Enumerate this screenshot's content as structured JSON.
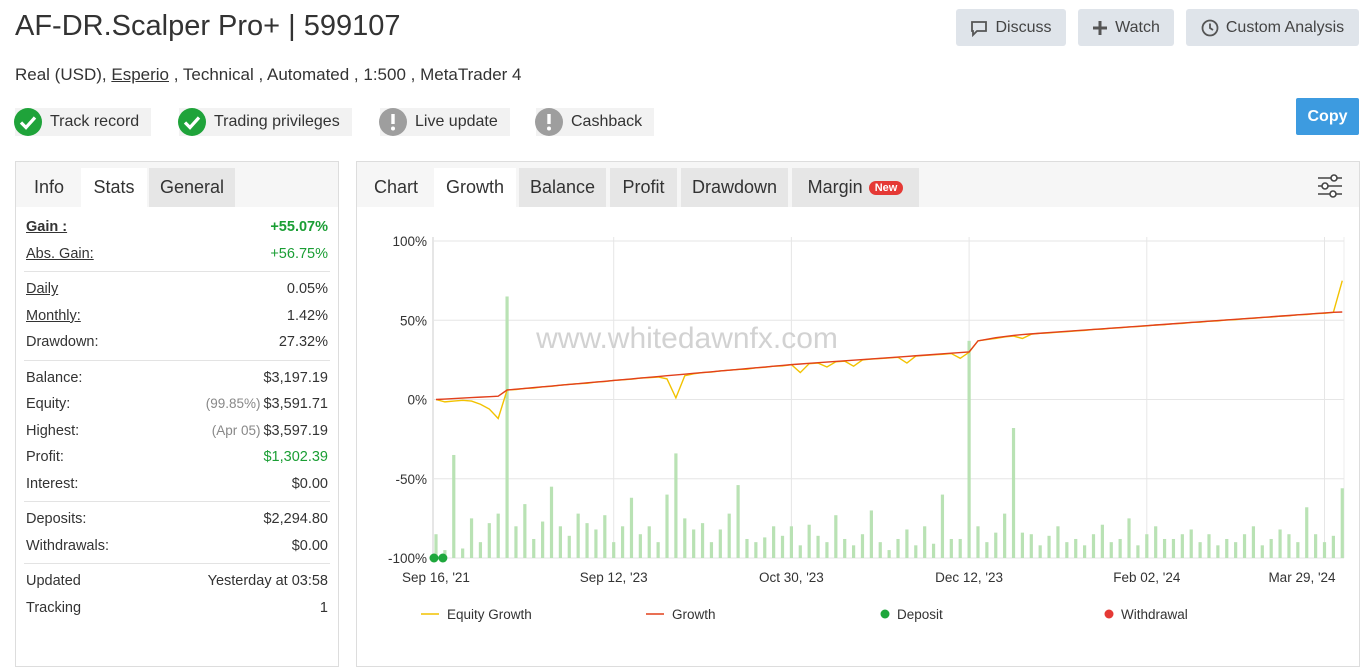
{
  "header": {
    "title": "AF-DR.Scalper Pro+ | 599107",
    "account": "Real (USD),",
    "broker": "Esperio",
    "details": ", Technical , Automated , 1:500 , MetaTrader 4",
    "buttons": [
      "Discuss",
      "Watch",
      "Custom Analysis"
    ],
    "copy": "Copy"
  },
  "badges": [
    {
      "label": "Track record",
      "ok": true
    },
    {
      "label": "Trading privileges",
      "ok": true
    },
    {
      "label": "Live update",
      "ok": false
    },
    {
      "label": "Cashback",
      "ok": false
    }
  ],
  "stats": {
    "tabs": [
      "Info",
      "Stats",
      "General"
    ],
    "groups": [
      [
        {
          "label": "Gain :",
          "value": "+55.07%"
        },
        {
          "label": "Abs. Gain:",
          "value": "+56.75%"
        }
      ],
      [
        {
          "label": "Daily",
          "value": "0.05%"
        },
        {
          "label": "Monthly:",
          "value": "1.42%"
        },
        {
          "label": "Drawdown:",
          "value": "27.32%"
        }
      ],
      [
        {
          "label": "Balance:",
          "value": "$3,197.19"
        },
        {
          "label": "Equity:",
          "note": "(99.85%)",
          "value": "$3,591.71"
        },
        {
          "label": "Highest:",
          "note": "(Apr 05)",
          "value": "$3,597.19"
        },
        {
          "label": "Profit:",
          "value": "$1,302.39"
        },
        {
          "label": "Interest:",
          "value": "$0.00"
        }
      ],
      [
        {
          "label": "Deposits:",
          "value": "$2,294.80"
        },
        {
          "label": "Withdrawals:",
          "value": "$0.00"
        }
      ],
      [
        {
          "label": "Updated",
          "value": "Yesterday at 03:58"
        },
        {
          "label": "Tracking",
          "value": 1
        }
      ]
    ]
  },
  "chart_tabs": {
    "label": "Chart",
    "tabs": [
      "Growth",
      "Balance",
      "Profit",
      "Drawdown",
      "Margin"
    ],
    "new": "New"
  },
  "chart_data": {
    "type": "line",
    "watermark": "www.whitedawnfx.com",
    "categories": [
      "Sep 16, '21",
      null,
      null,
      null,
      null,
      null,
      null,
      null,
      null,
      null,
      null,
      null,
      null,
      null,
      null,
      null,
      null,
      null,
      null,
      null,
      "Sep 12, '23",
      null,
      null,
      null,
      null,
      null,
      null,
      null,
      null,
      null,
      null,
      null,
      null,
      null,
      null,
      null,
      null,
      null,
      null,
      null,
      "Oct 30, '23",
      null,
      null,
      null,
      null,
      null,
      null,
      null,
      null,
      null,
      null,
      null,
      null,
      null,
      null,
      null,
      null,
      null,
      null,
      null,
      "Dec 12, '23",
      null,
      null,
      null,
      null,
      null,
      null,
      null,
      null,
      null,
      null,
      null,
      null,
      null,
      null,
      null,
      null,
      null,
      null,
      null,
      "Feb 02, '24",
      null,
      null,
      null,
      null,
      null,
      null,
      null,
      null,
      null,
      null,
      null,
      null,
      null,
      null,
      null,
      null,
      null,
      null,
      null,
      "Mar 29, '24",
      null,
      null
    ],
    "series": [
      {
        "name": "Equity Growth",
        "color": "#f2c200",
        "values": [
          0,
          -1.5,
          -1,
          -0.5,
          -1,
          -3,
          -6,
          -12,
          6,
          6.3,
          7,
          7.2,
          8,
          8.3,
          9,
          9.6,
          10,
          10.2,
          11,
          11.3,
          12,
          12.4,
          12.8,
          13.5,
          13.8,
          14.2,
          13,
          1,
          15,
          16.2,
          17,
          17.3,
          18,
          18.5,
          19,
          19.1,
          20,
          20.3,
          21,
          21.2,
          22,
          17,
          22.6,
          23,
          20.5,
          23.8,
          24.2,
          21,
          25,
          25.5,
          25.8,
          26.2,
          26.6,
          23,
          27.4,
          27.8,
          28.2,
          28.5,
          29,
          26,
          29.8,
          37,
          37.8,
          38.5,
          39.5,
          40,
          38.5,
          41.2,
          41.8,
          42,
          42.5,
          42.8,
          43.3,
          43.6,
          44.2,
          44.4,
          45,
          45.2,
          45.8,
          46,
          46.5,
          47,
          47.2,
          47.8,
          48,
          48.6,
          48.8,
          49.4,
          49.6,
          50.2,
          50.4,
          51,
          51.2,
          51.8,
          52,
          52.6,
          52.8,
          53.4,
          53.6,
          54.2,
          54.4,
          55,
          75
        ]
      },
      {
        "name": "Growth",
        "color": "#e2401c",
        "values": [
          0,
          0.3,
          0.6,
          0.9,
          1.2,
          1.5,
          1.8,
          2.1,
          6,
          6.5,
          7,
          7.5,
          8,
          8.5,
          9,
          9.5,
          10,
          10.5,
          11,
          11.5,
          12,
          12.5,
          13,
          13.5,
          14,
          14.5,
          15,
          15.5,
          16,
          16.5,
          17,
          17.5,
          18,
          18.5,
          19,
          19.5,
          20,
          20.5,
          21,
          21.5,
          22,
          22.4,
          22.8,
          23.2,
          23.6,
          24,
          24.4,
          24.8,
          25.2,
          25.6,
          26,
          26.4,
          26.8,
          27.2,
          27.6,
          28,
          28.4,
          28.8,
          29.2,
          29.6,
          30,
          37,
          38,
          39,
          39.7,
          40.4,
          41,
          41.4,
          41.8,
          42.2,
          42.6,
          43,
          43.4,
          43.8,
          44.2,
          44.6,
          45,
          45.4,
          45.8,
          46.2,
          46.6,
          47,
          47.4,
          47.8,
          48.2,
          48.6,
          49,
          49.4,
          49.8,
          50.2,
          50.6,
          51,
          51.4,
          51.8,
          52.2,
          52.6,
          53,
          53.4,
          53.8,
          54.2,
          54.6,
          55,
          55.2
        ]
      },
      {
        "name": "Deposit",
        "type": "scatter",
        "color": "#1ea73c",
        "values": [
          -100,
          -100,
          null,
          null,
          null,
          null,
          null,
          null,
          null,
          null,
          null,
          null,
          null,
          null,
          null,
          null,
          null,
          null,
          null,
          null,
          null,
          null,
          null,
          null,
          null,
          null,
          null,
          null,
          null,
          null,
          null,
          null,
          null,
          null,
          null,
          null,
          null,
          null,
          null,
          null,
          null,
          null,
          null,
          null,
          null,
          null,
          null,
          null,
          null,
          null,
          null,
          null,
          null,
          null,
          null,
          null,
          null,
          null,
          null,
          null,
          null,
          null,
          null,
          null,
          null,
          null,
          null,
          null,
          null,
          null,
          null,
          null,
          null,
          null,
          null,
          null,
          null,
          null,
          null,
          null,
          null,
          null,
          null,
          null,
          null,
          null,
          null,
          null,
          null,
          null,
          null,
          null,
          null,
          null,
          null,
          null,
          null,
          null,
          null,
          null,
          null,
          null,
          null
        ]
      },
      {
        "name": "Withdrawal",
        "type": "scatter",
        "color": "#e53935",
        "values": [
          null,
          null,
          null,
          null,
          null,
          null,
          null,
          null,
          null,
          null,
          null,
          null,
          null,
          null,
          null,
          null,
          null,
          null,
          null,
          null,
          null,
          null,
          null,
          null,
          null,
          null,
          null,
          null,
          null,
          null,
          null,
          null,
          null,
          null,
          null,
          null,
          null,
          null,
          null,
          null,
          null,
          null,
          null,
          null,
          null,
          null,
          null,
          null,
          null,
          null,
          null,
          null,
          null,
          null,
          null,
          null,
          null,
          null,
          null,
          null,
          null,
          null,
          null,
          null,
          null,
          null,
          null,
          null,
          null,
          null,
          null,
          null,
          null,
          null,
          null,
          null,
          null,
          null,
          null,
          null,
          null,
          null,
          null,
          null,
          null,
          null,
          null,
          null,
          null,
          null,
          null,
          null,
          null,
          null,
          null,
          null,
          null,
          null,
          null,
          null,
          null,
          null,
          null
        ]
      }
    ],
    "bars": {
      "color": "#b9e2b4",
      "values": [
        -85,
        -95,
        -35,
        -94,
        -75,
        -90,
        -78,
        -72,
        65,
        -80,
        -66,
        -88,
        -77,
        -55,
        -80,
        -86,
        -72,
        -78,
        -82,
        -73,
        -90,
        -80,
        -62,
        -85,
        -80,
        -90,
        -60,
        -34,
        -75,
        -82,
        -78,
        -90,
        -82,
        -72,
        -54,
        -88,
        -90,
        -87,
        -80,
        -86,
        -80,
        -92,
        -79,
        -86,
        -90,
        -73,
        -88,
        -92,
        -85,
        -70,
        -90,
        -95,
        -88,
        -82,
        -92,
        -80,
        -91,
        -60,
        -88,
        -88,
        37,
        -80,
        -90,
        -84,
        -72,
        -18,
        -84,
        -85,
        -92,
        -86,
        -80,
        -90,
        -88,
        -92,
        -85,
        -79,
        -90,
        -88,
        -75,
        -92,
        -85,
        -80,
        -88,
        -88,
        -85,
        -82,
        -90,
        -85,
        -92,
        -88,
        -90,
        -85,
        -80,
        -92,
        -88,
        -82,
        -85,
        -90,
        -68,
        -85,
        -90,
        -86,
        -56
      ]
    },
    "ylim": [
      -100,
      100
    ],
    "yticks": [
      {
        "value": 100,
        "label": "100%"
      },
      {
        "value": 50,
        "label": "50%"
      },
      {
        "value": 0,
        "label": "0%"
      },
      {
        "value": -50,
        "label": "-50%"
      },
      {
        "value": -100,
        "label": "-100%"
      }
    ],
    "grid": true
  }
}
